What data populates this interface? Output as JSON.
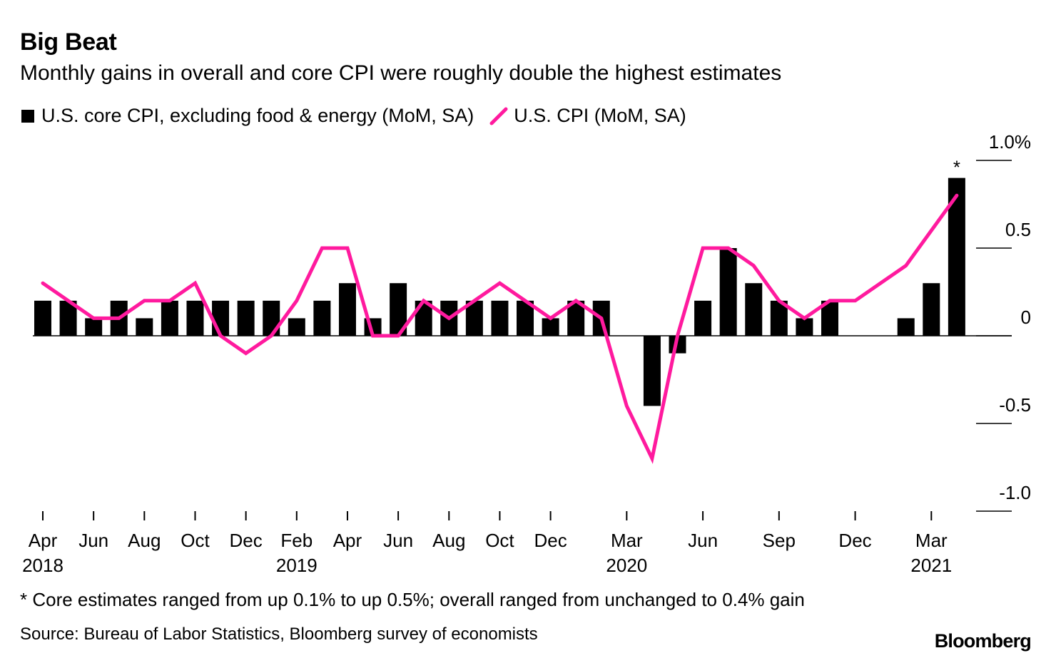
{
  "title": "Big Beat",
  "subtitle": "Monthly gains in overall and core CPI were roughly double the highest estimates",
  "legend": {
    "core": "U.S. core CPI, excluding food & energy (MoM, SA)",
    "cpi": "U.S. CPI (MoM, SA)"
  },
  "footnote": "* Core estimates ranged from up 0.1% to up 0.5%; overall ranged from unchanged to 0.4% gain",
  "source": "Source: Bureau of Labor Statistics, Bloomberg survey of economists",
  "brand": "Bloomberg",
  "colors": {
    "core": "#000000",
    "cpi": "#ff1a9e"
  },
  "chart_data": {
    "type": "bar",
    "title": "Big Beat",
    "xlabel": "",
    "ylabel": "",
    "ylim": [
      -1.0,
      1.0
    ],
    "y_ticks": [
      "1.0%",
      "0.5",
      "0",
      "-0.5",
      "-1.0"
    ],
    "y_tick_values": [
      1.0,
      0.5,
      0,
      -0.5,
      -1.0
    ],
    "categories": [
      "Apr 2018",
      "May 2018",
      "Jun 2018",
      "Jul 2018",
      "Aug 2018",
      "Sep 2018",
      "Oct 2018",
      "Nov 2018",
      "Dec 2018",
      "Jan 2019",
      "Feb 2019",
      "Mar 2019",
      "Apr 2019",
      "May 2019",
      "Jun 2019",
      "Jul 2019",
      "Aug 2019",
      "Sep 2019",
      "Oct 2019",
      "Nov 2019",
      "Dec 2019",
      "Jan 2020",
      "Feb 2020",
      "Mar 2020",
      "Apr 2020",
      "May 2020",
      "Jun 2020",
      "Jul 2020",
      "Aug 2020",
      "Sep 2020",
      "Oct 2020",
      "Nov 2020",
      "Dec 2020",
      "Jan 2021",
      "Feb 2021",
      "Mar 2021",
      "Apr 2021"
    ],
    "x_tick_labels": [
      {
        "index": 0,
        "month": "Apr",
        "year": "2018"
      },
      {
        "index": 2,
        "month": "Jun",
        "year": ""
      },
      {
        "index": 4,
        "month": "Aug",
        "year": ""
      },
      {
        "index": 6,
        "month": "Oct",
        "year": ""
      },
      {
        "index": 8,
        "month": "Dec",
        "year": ""
      },
      {
        "index": 10,
        "month": "Feb",
        "year": "2019"
      },
      {
        "index": 12,
        "month": "Apr",
        "year": ""
      },
      {
        "index": 14,
        "month": "Jun",
        "year": ""
      },
      {
        "index": 16,
        "month": "Aug",
        "year": ""
      },
      {
        "index": 18,
        "month": "Oct",
        "year": ""
      },
      {
        "index": 20,
        "month": "Dec",
        "year": ""
      },
      {
        "index": 23,
        "month": "Mar",
        "year": "2020"
      },
      {
        "index": 26,
        "month": "Jun",
        "year": ""
      },
      {
        "index": 29,
        "month": "Sep",
        "year": ""
      },
      {
        "index": 32,
        "month": "Dec",
        "year": ""
      },
      {
        "index": 35,
        "month": "Mar",
        "year": "2021"
      }
    ],
    "series": [
      {
        "name": "U.S. core CPI, excluding food & energy (MoM, SA)",
        "kind": "bar",
        "values": [
          0.2,
          0.2,
          0.1,
          0.2,
          0.1,
          0.2,
          0.2,
          0.2,
          0.2,
          0.2,
          0.1,
          0.2,
          0.3,
          0.1,
          0.3,
          0.2,
          0.2,
          0.2,
          0.2,
          0.2,
          0.1,
          0.2,
          0.2,
          0.0,
          -0.4,
          -0.1,
          0.2,
          0.5,
          0.3,
          0.2,
          0.1,
          0.2,
          0.0,
          0.0,
          0.1,
          0.3,
          0.9
        ]
      },
      {
        "name": "U.S. CPI (MoM, SA)",
        "kind": "line",
        "values": [
          0.3,
          0.2,
          0.1,
          0.1,
          0.2,
          0.2,
          0.3,
          0.0,
          -0.1,
          0.0,
          0.2,
          0.5,
          0.5,
          0.0,
          0.0,
          0.2,
          0.1,
          0.2,
          0.3,
          0.2,
          0.1,
          0.2,
          0.1,
          -0.4,
          -0.7,
          0.0,
          0.5,
          0.5,
          0.4,
          0.2,
          0.1,
          0.2,
          0.2,
          0.3,
          0.4,
          0.6,
          0.8
        ]
      }
    ],
    "annotations": [
      {
        "category_index": 36,
        "text": "*"
      }
    ]
  }
}
